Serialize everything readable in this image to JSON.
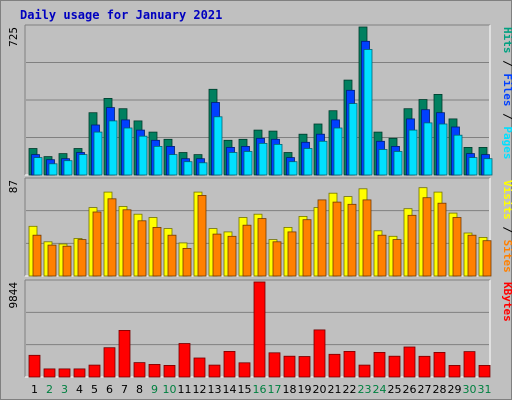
{
  "chart_data": {
    "title": "Daily usage for January 2021",
    "type": "bar",
    "days": [
      "1",
      "2",
      "3",
      "4",
      "5",
      "6",
      "7",
      "8",
      "9",
      "10",
      "11",
      "12",
      "13",
      "14",
      "15",
      "16",
      "17",
      "18",
      "19",
      "20",
      "21",
      "22",
      "23",
      "24",
      "25",
      "26",
      "27",
      "28",
      "29",
      "30",
      "31"
    ],
    "weekend_days": [
      2,
      3,
      9,
      10,
      16,
      17,
      23,
      24,
      30,
      31
    ],
    "colors": {
      "title": "#0000c0",
      "weekday_label": "#000000",
      "weekend_label": "#008040",
      "hits": "#008060",
      "files": "#0040ff",
      "pages": "#00e0ff",
      "visits": "#ffff00",
      "sites": "#ff8000",
      "kbytes": "#ff0000",
      "panel_background": "#c0c0c0"
    },
    "panels": [
      {
        "id": "hits-files-pages",
        "max_label": "725",
        "y_max": 725,
        "legend": [
          {
            "text": "Hits",
            "color": "#00a080"
          },
          {
            "text": " / ",
            "color": "#000000"
          },
          {
            "text": "Files",
            "color": "#0040ff"
          },
          {
            "text": " / ",
            "color": "#000000"
          },
          {
            "text": "Pages",
            "color": "#00e0ff"
          }
        ],
        "series": [
          {
            "name": "Hits",
            "color": "#008060",
            "values": [
              130,
              90,
              105,
              130,
              305,
              375,
              325,
              265,
              210,
              175,
              110,
              100,
              420,
              170,
              175,
              220,
              215,
              110,
              200,
              250,
              315,
              465,
              725,
              210,
              180,
              325,
              370,
              395,
              275,
              135,
              135
            ]
          },
          {
            "name": "Files",
            "color": "#0040ff",
            "values": [
              100,
              75,
              80,
              110,
              245,
              330,
              270,
              220,
              170,
              140,
              80,
              80,
              355,
              135,
              140,
              180,
              175,
              85,
              160,
              200,
              270,
              415,
              655,
              165,
              140,
              275,
              320,
              305,
              235,
              105,
              100
            ]
          },
          {
            "name": "Pages",
            "color": "#00e0ff",
            "values": [
              85,
              55,
              70,
              100,
              210,
              265,
              230,
              190,
              140,
              100,
              65,
              60,
              285,
              110,
              115,
              155,
              150,
              65,
              130,
              165,
              230,
              350,
              615,
              125,
              115,
              220,
              255,
              250,
              195,
              85,
              80
            ]
          }
        ]
      },
      {
        "id": "visits-sites",
        "max_label": "87",
        "y_max": 87,
        "legend": [
          {
            "text": "Visits",
            "color": "#ffff00"
          },
          {
            "text": " / ",
            "color": "#000000"
          },
          {
            "text": "Sites",
            "color": "#ff8000"
          }
        ],
        "series": [
          {
            "name": "Visits",
            "color": "#ffff00",
            "values": [
              45,
              31,
              29,
              34,
              62,
              76,
              63,
              56,
              53,
              43,
              30,
              76,
              43,
              40,
              53,
              56,
              33,
              44,
              54,
              62,
              75,
              72,
              79,
              41,
              36,
              61,
              80,
              76,
              57,
              39,
              35
            ]
          },
          {
            "name": "Sites",
            "color": "#ff8000",
            "values": [
              37,
              28,
              27,
              33,
              58,
              70,
              60,
              50,
              44,
              37,
              25,
              73,
              38,
              36,
              46,
              52,
              31,
              40,
              51,
              69,
              67,
              65,
              69,
              37,
              33,
              55,
              71,
              66,
              53,
              37,
              32
            ]
          }
        ]
      },
      {
        "id": "kbytes",
        "max_label": "9844",
        "y_max": 9844,
        "legend": [
          {
            "text": "KBytes",
            "color": "#ff0000"
          }
        ],
        "series": [
          {
            "name": "KBytes",
            "color": "#ff0000",
            "values": [
              2250,
              840,
              840,
              840,
              1230,
              3040,
              4830,
              1490,
              1310,
              1200,
              3470,
              1970,
              1230,
              2650,
              1470,
              9844,
              2510,
              2160,
              2120,
              4880,
              2350,
              2650,
              1230,
              2550,
              2160,
              3110,
              2140,
              2550,
              1200,
              2630,
              1200
            ]
          }
        ]
      }
    ]
  }
}
